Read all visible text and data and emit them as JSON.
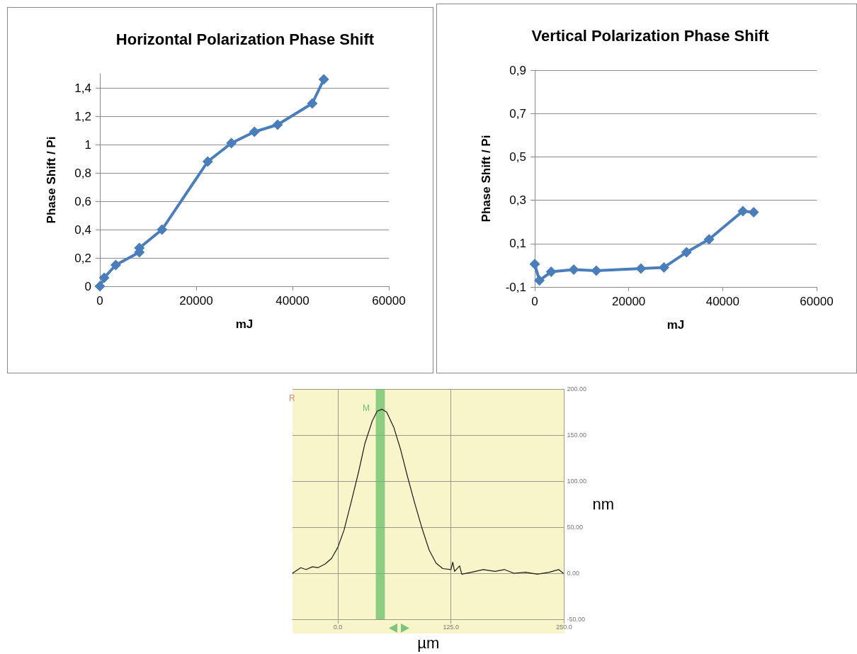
{
  "chart_data": [
    {
      "type": "line",
      "title": "Horizontal Polarization Phase Shift",
      "xlabel": "mJ",
      "ylabel": "Phase Shift / Pi",
      "marker": "diamond",
      "grid": "y",
      "xlim": [
        0,
        60000
      ],
      "xticks": [
        0,
        20000,
        40000,
        60000
      ],
      "ylim": [
        0,
        1.5
      ],
      "yticks": [
        0,
        {
          "value": 0.2,
          "label": "0,2"
        },
        {
          "value": 0.4,
          "label": "0,4"
        },
        {
          "value": 0.6,
          "label": "0,6"
        },
        {
          "value": 0.8,
          "label": "0,8"
        },
        1,
        {
          "value": 1.2,
          "label": "1,2"
        },
        {
          "value": 1.4,
          "label": "1,4"
        }
      ],
      "series": [
        {
          "color": "#4a7ebb",
          "x": [
            0,
            900,
            3300,
            8200,
            8200,
            12900,
            22400,
            27300,
            32100,
            36900,
            44100,
            46500
          ],
          "values": [
            0,
            0.06,
            0.15,
            0.24,
            0.27,
            0.4,
            0.88,
            1.01,
            1.09,
            1.14,
            1.29,
            1.46
          ]
        }
      ]
    },
    {
      "type": "line",
      "title": "Vertical Polarization Phase Shift",
      "xlabel": "mJ",
      "ylabel": "Phase Shift / Pi",
      "marker": "diamond",
      "grid": "y",
      "xlim": [
        0,
        60000
      ],
      "xticks": [
        0,
        20000,
        40000,
        60000
      ],
      "ylim": [
        -0.1,
        0.9
      ],
      "yticks": [
        {
          "value": -0.1,
          "label": "-0,1"
        },
        {
          "value": 0.1,
          "label": "0,1"
        },
        {
          "value": 0.3,
          "label": "0,3"
        },
        {
          "value": 0.5,
          "label": "0,5"
        },
        {
          "value": 0.7,
          "label": "0,7"
        },
        {
          "value": 0.9,
          "label": "0,9"
        }
      ],
      "series": [
        {
          "color": "#4a7ebb",
          "x": [
            0,
            1000,
            3500,
            8300,
            13100,
            22600,
            27500,
            32300,
            37100,
            44300,
            46600
          ],
          "values": [
            0.005,
            -0.07,
            -0.03,
            -0.02,
            -0.025,
            -0.015,
            -0.01,
            0.06,
            0.12,
            0.25,
            0.245
          ]
        }
      ]
    },
    {
      "type": "line",
      "xlabel": "µm",
      "ylabel": "nm",
      "marker": "none",
      "grid": true,
      "xlim": [
        -50,
        250
      ],
      "xticks": [
        {
          "value": 0,
          "label": "0.0"
        },
        {
          "value": 125,
          "label": "125.0"
        },
        {
          "value": 250,
          "label": "250.0"
        }
      ],
      "ylim": [
        -50,
        200
      ],
      "yticks": [
        {
          "value": -50,
          "label": "-50.00"
        },
        {
          "value": 0,
          "label": "0.00"
        },
        {
          "value": 50,
          "label": "50.00"
        },
        {
          "value": 100,
          "label": "100.00"
        },
        {
          "value": 150,
          "label": "150.00"
        },
        {
          "value": 200,
          "label": "200.00"
        }
      ],
      "bands": [
        {
          "axis": "x",
          "from": 42,
          "to": 52,
          "color": "#6abf69"
        }
      ],
      "annotations": [
        "R",
        "M"
      ],
      "series": [
        {
          "color": "#1a1a1a",
          "x": [
            -50,
            -41,
            -35,
            -28,
            -22,
            -14,
            -7,
            0,
            7,
            15,
            23,
            30,
            38,
            43.5,
            48.7,
            54,
            62,
            69.5,
            77,
            85,
            93,
            101,
            108.6,
            116,
            125,
            127,
            129,
            134.6,
            137,
            147.7,
            160.7,
            173.7,
            184,
            194.5,
            207.5,
            220.6,
            233.6,
            244,
            249
          ],
          "values": [
            0,
            6,
            4,
            7,
            6,
            10,
            16,
            28,
            47,
            78,
            110,
            141,
            165,
            176,
            178,
            175,
            158,
            134,
            105,
            76,
            49,
            25,
            11,
            5,
            4,
            12,
            2,
            8,
            -1,
            1,
            4,
            2,
            4,
            0,
            1,
            -1,
            1,
            4,
            0
          ]
        }
      ]
    }
  ]
}
